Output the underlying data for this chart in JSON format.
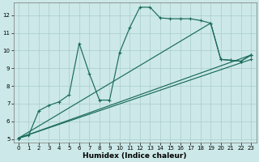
{
  "xlabel": "Humidex (Indice chaleur)",
  "bg_color": "#cce8e8",
  "grid_color": "#aacccc",
  "line_color": "#1a6b5a",
  "xlim": [
    -0.5,
    23.5
  ],
  "ylim": [
    4.8,
    12.7
  ],
  "yticks": [
    5,
    6,
    7,
    8,
    9,
    10,
    11,
    12
  ],
  "xticks": [
    0,
    1,
    2,
    3,
    4,
    5,
    6,
    7,
    8,
    9,
    10,
    11,
    12,
    13,
    14,
    15,
    16,
    17,
    18,
    19,
    20,
    21,
    22,
    23
  ],
  "line1": {
    "x": [
      0,
      1,
      2,
      3,
      4,
      5,
      6,
      7,
      8,
      9,
      10,
      11,
      12,
      13,
      14,
      15,
      16,
      17,
      18,
      19,
      20,
      21,
      22,
      23
    ],
    "y": [
      5.05,
      5.2,
      6.6,
      6.9,
      7.1,
      7.5,
      10.4,
      8.7,
      7.2,
      7.2,
      9.9,
      11.3,
      12.45,
      12.45,
      11.85,
      11.8,
      11.8,
      11.8,
      11.7,
      11.55,
      9.5,
      9.45,
      9.4,
      9.75
    ]
  },
  "line2": {
    "x": [
      0,
      23
    ],
    "y": [
      5.05,
      9.75
    ]
  },
  "line3": {
    "x": [
      0,
      23
    ],
    "y": [
      5.05,
      9.5
    ]
  },
  "line4": {
    "x": [
      0,
      19,
      20,
      21,
      22,
      23
    ],
    "y": [
      5.05,
      11.55,
      9.5,
      9.45,
      9.4,
      9.75
    ]
  }
}
